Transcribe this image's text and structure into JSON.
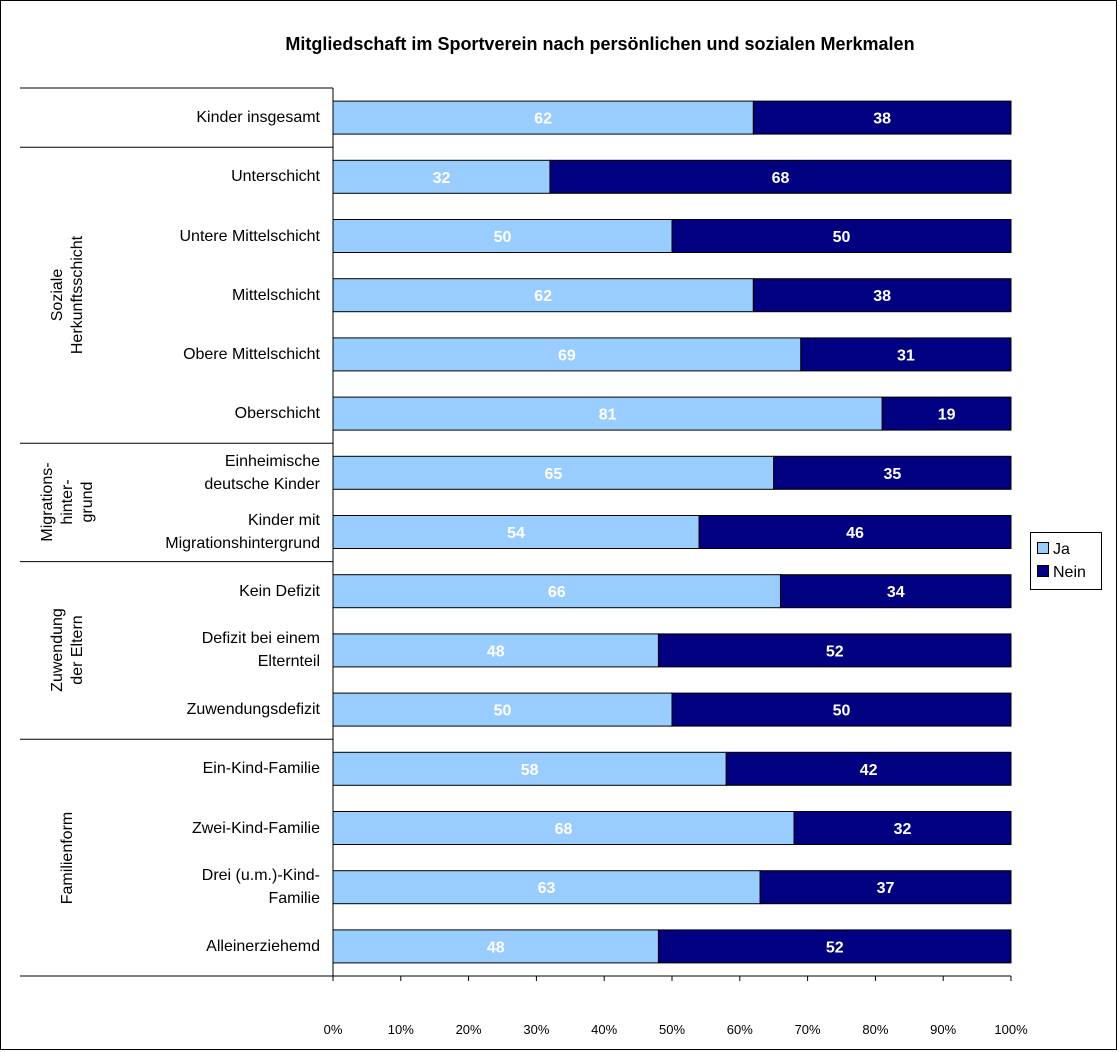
{
  "chart_data": {
    "type": "bar",
    "orientation": "horizontal",
    "stacked": "percent",
    "title": "Mitgliedschaft im Sportverein nach persönlichen und sozialen Merkmalen",
    "categories": [
      "Kinder insgesamt",
      "Unterschicht",
      "Untere Mittelschicht",
      "Mittelschicht",
      "Obere Mittelschicht",
      "Oberschicht",
      "Einheimische deutsche Kinder",
      "Kinder mit Migrationshintergrund",
      "Kein Defizit",
      "Defizit bei einem Elternteil",
      "Zuwendungsdefizit",
      "Ein-Kind-Familie",
      "Zwei-Kind-Familie",
      "Drei (u.m.)-Kind-Familie",
      "Alleinerziehemd"
    ],
    "series": [
      {
        "name": "Ja",
        "color": "#99ccff",
        "values": [
          62,
          32,
          50,
          62,
          69,
          81,
          65,
          54,
          66,
          48,
          50,
          58,
          68,
          63,
          48
        ]
      },
      {
        "name": "Nein",
        "color": "#000080",
        "values": [
          38,
          68,
          50,
          38,
          31,
          19,
          35,
          46,
          34,
          52,
          50,
          42,
          32,
          37,
          52
        ]
      }
    ],
    "groups": [
      {
        "label": "",
        "categories": [
          "Kinder insgesamt"
        ]
      },
      {
        "label": "Soziale Herkunftsschicht",
        "categories": [
          "Unterschicht",
          "Untere Mittelschicht",
          "Mittelschicht",
          "Obere Mittelschicht",
          "Oberschicht"
        ]
      },
      {
        "label": "Migrations-hinter-grund",
        "categories": [
          "Einheimische deutsche Kinder",
          "Kinder mit Migrationshintergrund"
        ]
      },
      {
        "label": "Zuwendung der Eltern",
        "categories": [
          "Kein Defizit",
          "Defizit bei einem Elternteil",
          "Zuwendungsdefizit"
        ]
      },
      {
        "label": "Familienform",
        "categories": [
          "Ein-Kind-Familie",
          "Zwei-Kind-Familie",
          "Drei (u.m.)-Kind-Familie",
          "Alleinerziehemd"
        ]
      }
    ],
    "xlim": [
      0,
      100
    ],
    "xticks": [
      "0%",
      "10%",
      "20%",
      "30%",
      "40%",
      "50%",
      "60%",
      "70%",
      "80%",
      "90%",
      "100%"
    ],
    "grid": false,
    "legend": {
      "position": "right",
      "entries": [
        "Ja",
        "Nein"
      ]
    },
    "data_labels": true
  }
}
